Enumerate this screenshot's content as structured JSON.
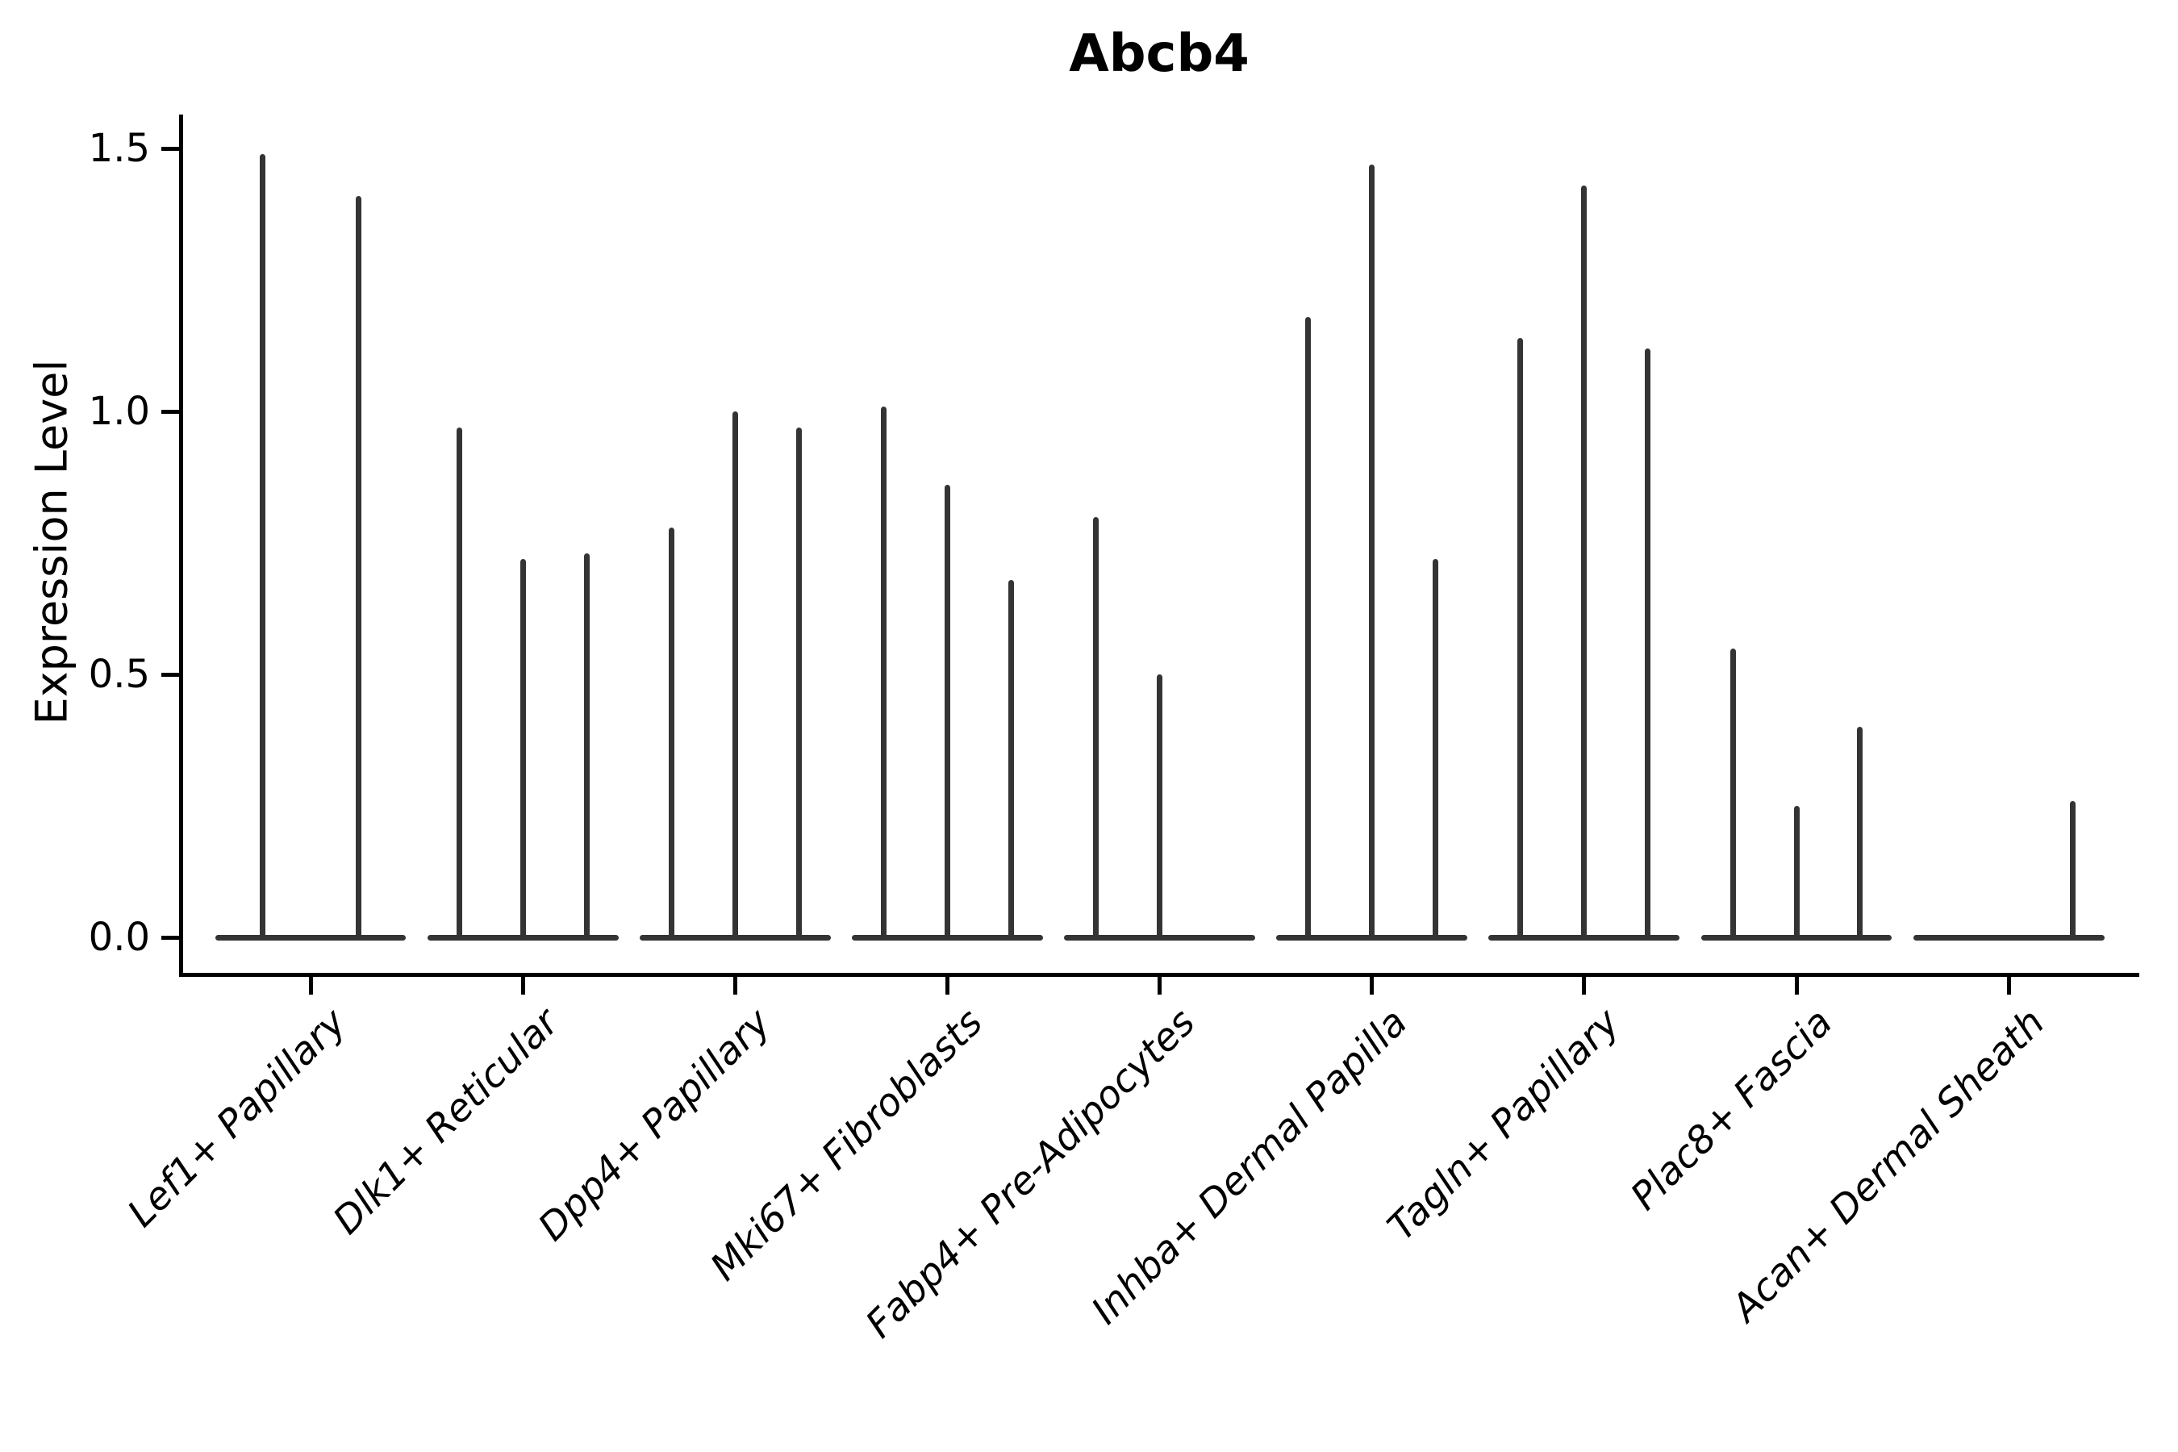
{
  "title": "Abcb4",
  "y_axis": {
    "label": "Expression Level",
    "tick_labels": [
      "0.0",
      "0.5",
      "1.0",
      "1.5"
    ],
    "tick_values": [
      0,
      0.5,
      1.0,
      1.5
    ]
  },
  "x_axis": {
    "categories": [
      "Lef1+ Papillary",
      "Dlk1+ Reticular",
      "Dpp4+ Papillary",
      "Mki67+ Fibroblasts",
      "Fabp4+ Pre-Adipocytes",
      "Inhba+ Dermal Papilla",
      "Tagln+ Papillary",
      "Plac8+ Fascia",
      "Acan+ Dermal Sheath"
    ]
  },
  "colors": {
    "violin": "#343434",
    "axis": "#000000",
    "text": "#000000",
    "background": "#ffffff"
  },
  "chart_data": {
    "type": "violin",
    "title": "Abcb4",
    "xlabel": "",
    "ylabel": "Expression Level",
    "ylim": [
      -0.07,
      1.57
    ],
    "yticks": [
      0,
      0.5,
      1.0,
      1.5
    ],
    "ytick_labels": [
      "0.0",
      "0.5",
      "1.0",
      "1.5"
    ],
    "grid": false,
    "legend": false,
    "categories": [
      "Lef1+ Papillary",
      "Dlk1+ Reticular",
      "Dpp4+ Papillary",
      "Mki67+ Fibroblasts",
      "Fabp4+ Pre-Adipocytes",
      "Inhba+ Dermal Papilla",
      "Tagln+ Papillary",
      "Plac8+ Fascia",
      "Acan+ Dermal Sheath"
    ],
    "groups": [
      {
        "category": "Lef1+ Papillary",
        "violin_peaks": [
          1.49,
          1.41
        ]
      },
      {
        "category": "Dlk1+ Reticular",
        "violin_peaks": [
          0.97,
          0.72,
          0.73
        ]
      },
      {
        "category": "Dpp4+ Papillary",
        "violin_peaks": [
          0.78,
          1.0,
          0.97
        ]
      },
      {
        "category": "Mki67+ Fibroblasts",
        "violin_peaks": [
          1.01,
          0.86,
          0.68
        ]
      },
      {
        "category": "Fabp4+ Pre-Adipocytes",
        "violin_peaks": [
          0.8,
          0.5,
          0
        ]
      },
      {
        "category": "Inhba+ Dermal Papilla",
        "violin_peaks": [
          1.18,
          1.47,
          0.72
        ]
      },
      {
        "category": "Tagln+ Papillary",
        "violin_peaks": [
          1.14,
          1.43,
          1.12
        ]
      },
      {
        "category": "Plac8+ Fascia",
        "violin_peaks": [
          0.55,
          0.25,
          0.4
        ]
      },
      {
        "category": "Acan+ Dermal Sheath",
        "violin_peaks": [
          0,
          0,
          0.26
        ]
      }
    ]
  }
}
